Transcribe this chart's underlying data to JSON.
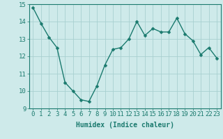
{
  "x": [
    0,
    1,
    2,
    3,
    4,
    5,
    6,
    7,
    8,
    9,
    10,
    11,
    12,
    13,
    14,
    15,
    16,
    17,
    18,
    19,
    20,
    21,
    22,
    23
  ],
  "y": [
    14.8,
    13.9,
    13.1,
    12.5,
    10.5,
    10.0,
    9.5,
    9.4,
    10.3,
    11.5,
    12.4,
    12.5,
    13.0,
    14.0,
    13.2,
    13.6,
    13.4,
    13.4,
    14.2,
    13.3,
    12.9,
    12.1,
    12.5,
    11.9
  ],
  "line_color": "#1a7a6e",
  "marker": "D",
  "marker_size": 2.5,
  "bg_color": "#ceeaea",
  "grid_color": "#a8d0d0",
  "xlabel": "Humidex (Indice chaleur)",
  "xlim": [
    -0.5,
    23.5
  ],
  "ylim": [
    9,
    15
  ],
  "yticks": [
    9,
    10,
    11,
    12,
    13,
    14,
    15
  ],
  "xticks": [
    0,
    1,
    2,
    3,
    4,
    5,
    6,
    7,
    8,
    9,
    10,
    11,
    12,
    13,
    14,
    15,
    16,
    17,
    18,
    19,
    20,
    21,
    22,
    23
  ],
  "xlabel_fontsize": 7,
  "tick_fontsize": 6.5,
  "linewidth": 1.0
}
